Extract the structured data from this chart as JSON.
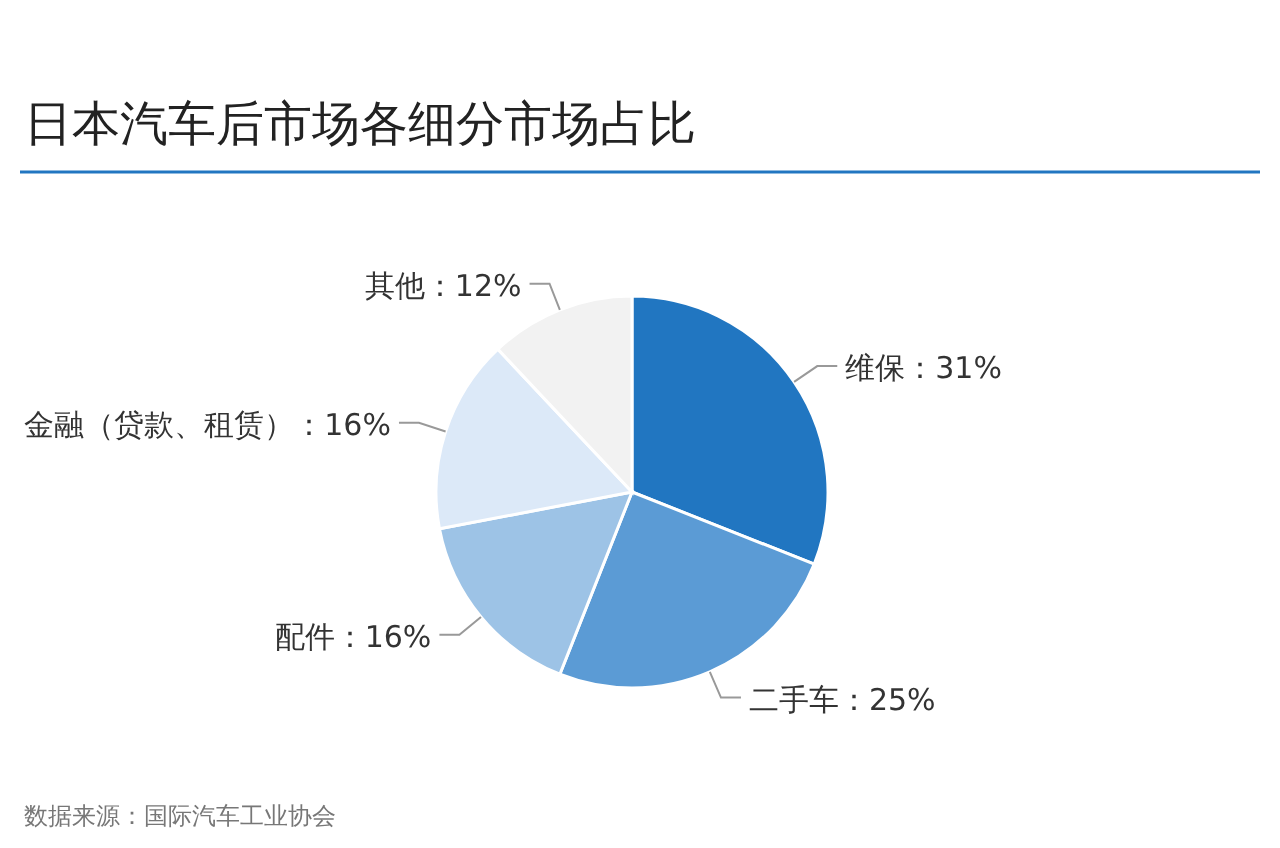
{
  "chart_data": {
    "type": "pie",
    "title": "日本汽车后市场各细分市场占比",
    "categories": [
      "维保",
      "二手车",
      "配件",
      "金融（贷款、租赁）",
      "其他"
    ],
    "values": [
      31,
      25,
      16,
      16,
      12
    ],
    "value_labels": [
      "31%",
      "25%",
      "16%",
      "16%",
      "12%"
    ],
    "colors": [
      "#2176c1",
      "#5b9bd5",
      "#9dc3e6",
      "#dce9f8",
      "#f2f2f2"
    ],
    "annotations": [
      "数据来源：国际汽车工业协会"
    ]
  }
}
